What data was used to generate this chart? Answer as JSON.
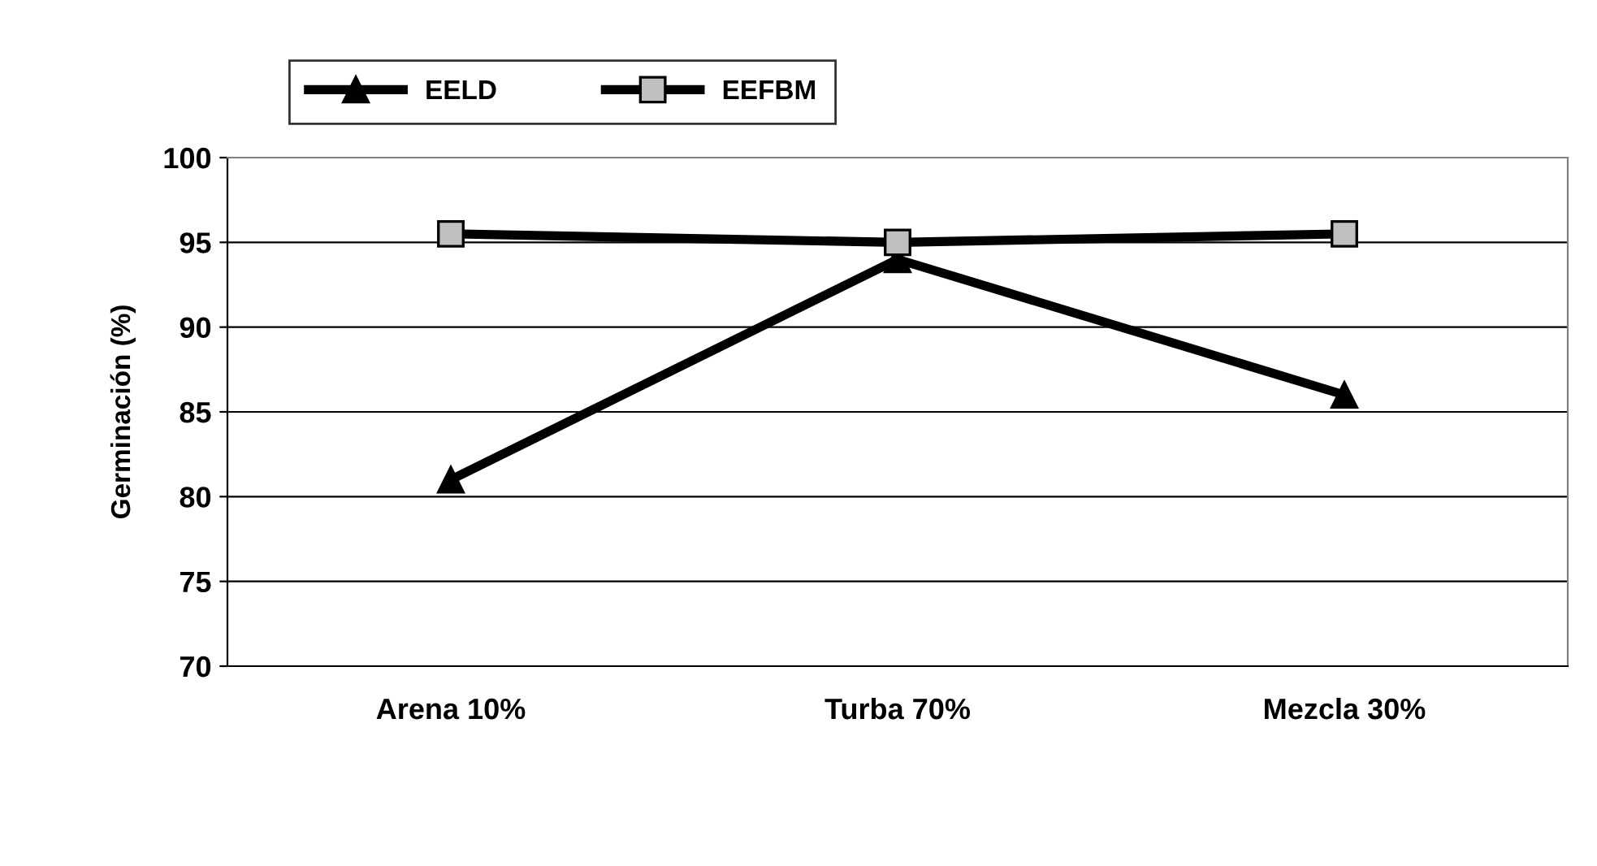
{
  "chart_data": {
    "type": "line",
    "ylabel": "Germinación (%)",
    "categories": [
      "Arena 10%",
      "Turba 70%",
      "Mezcla 30%"
    ],
    "series": [
      {
        "name": "EELD",
        "color": "#000000",
        "marker": "triangle",
        "values": [
          81,
          94,
          86
        ]
      },
      {
        "name": "EEFBM",
        "color": "#000000",
        "marker": "square",
        "values": [
          95.5,
          95,
          95.5
        ]
      }
    ],
    "ylim": [
      70,
      100
    ],
    "yticks": [
      70,
      75,
      80,
      85,
      90,
      95,
      100
    ],
    "grid": "y",
    "legend": "top",
    "line_style": "solid"
  }
}
